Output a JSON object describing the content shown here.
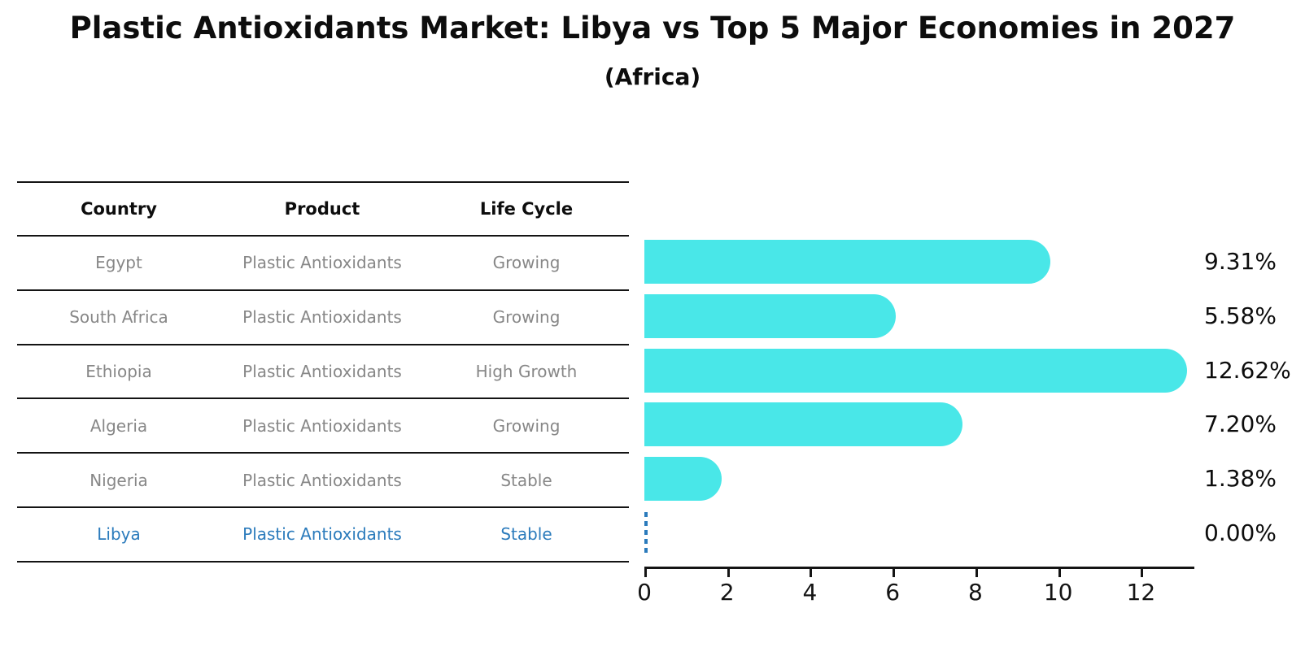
{
  "title": "Plastic Antioxidants Market: Libya vs Top 5 Major Economies in 2027",
  "subtitle": "(Africa)",
  "colors": {
    "bar": "#49E7E8",
    "highlight_blue": "#2B7BBC",
    "body_gray": "#878787",
    "line_black": "#141414"
  },
  "table": {
    "headers": [
      "Country",
      "Product",
      "Life Cycle"
    ],
    "rows": [
      {
        "country": "Egypt",
        "product": "Plastic Antioxidants",
        "life_cycle": "Growing",
        "highlight": false
      },
      {
        "country": "South Africa",
        "product": "Plastic Antioxidants",
        "life_cycle": "Growing",
        "highlight": false
      },
      {
        "country": "Ethiopia",
        "product": "Plastic Antioxidants",
        "life_cycle": "High Growth",
        "highlight": false
      },
      {
        "country": "Algeria",
        "product": "Plastic Antioxidants",
        "life_cycle": "Growing",
        "highlight": false
      },
      {
        "country": "Nigeria",
        "product": "Plastic Antioxidants",
        "life_cycle": "Stable",
        "highlight": false
      },
      {
        "country": "Libya",
        "product": "Plastic Antioxidants",
        "life_cycle": "Stable",
        "highlight": true
      }
    ]
  },
  "chart_data": {
    "type": "bar",
    "orientation": "horizontal",
    "title": "Plastic Antioxidants Market: Libya vs Top 5 Major Economies in 2027 (Africa)",
    "categories": [
      "Egypt",
      "South Africa",
      "Ethiopia",
      "Algeria",
      "Nigeria",
      "Libya"
    ],
    "values": [
      9.31,
      5.58,
      12.62,
      7.2,
      1.38,
      0.0
    ],
    "value_labels": [
      "9.31%",
      "5.58%",
      "12.62%",
      "7.20%",
      "1.38%",
      "0.00%"
    ],
    "xlabel": "",
    "ylabel": "",
    "xlim": [
      0,
      13.27
    ],
    "x_ticks": [
      0,
      2,
      4,
      6,
      8,
      10,
      12
    ],
    "grid": false,
    "legend": false,
    "highlight_category": "Libya",
    "highlight_style": "dashed-outline-zero-bar"
  }
}
